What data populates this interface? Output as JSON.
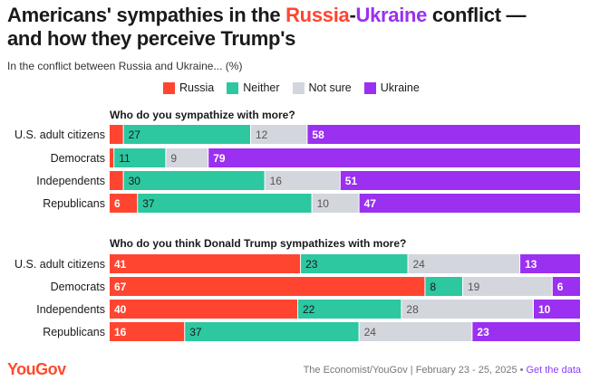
{
  "header": {
    "title_parts": [
      "Americans' sympathies in the ",
      "Russia",
      "-",
      "Ukraine",
      " conflict —",
      "and how they perceive Trump's"
    ],
    "subtitle": "In the conflict between Russia and Ukraine... (%)"
  },
  "legend": [
    "Russia",
    "Neither",
    "Not sure",
    "Ukraine"
  ],
  "footer": {
    "logo": "YouGov",
    "source": "The Economist/YouGov | February 23 - 25, 2025",
    "separator": "•",
    "link": "Get the data"
  },
  "colors": {
    "russia": "#ff4530",
    "neither": "#2dc7a0",
    "not_sure": "#d4d6de",
    "ukraine": "#9b30f0",
    "title_russia": "#ff4530",
    "title_ukraine": "#9b30f0"
  },
  "chart_data": {
    "type": "bar",
    "stacked": true,
    "orientation": "horizontal",
    "series_names": [
      "Russia",
      "Neither",
      "Not sure",
      "Ukraine"
    ],
    "panels": [
      {
        "title": "Who do you sympathize with more?",
        "categories": [
          "U.S. adult citizens",
          "Democrats",
          "Independents",
          "Republicans"
        ],
        "series": [
          {
            "name": "Russia",
            "values": [
              3,
              1,
              3,
              6
            ]
          },
          {
            "name": "Neither",
            "values": [
              27,
              11,
              30,
              37
            ]
          },
          {
            "name": "Not sure",
            "values": [
              12,
              9,
              16,
              10
            ]
          },
          {
            "name": "Ukraine",
            "values": [
              58,
              79,
              51,
              47
            ]
          }
        ],
        "labels": [
          [
            "",
            "27",
            "12",
            "58"
          ],
          [
            "",
            "11",
            "9",
            "79"
          ],
          [
            "",
            "30",
            "16",
            "51"
          ],
          [
            "6",
            "37",
            "10",
            "47"
          ]
        ]
      },
      {
        "title": "Who do you think Donald Trump sympathizes with more?",
        "categories": [
          "U.S. adult citizens",
          "Democrats",
          "Independents",
          "Republicans"
        ],
        "series": [
          {
            "name": "Russia",
            "values": [
              41,
              67,
              40,
              16
            ]
          },
          {
            "name": "Neither",
            "values": [
              23,
              8,
              22,
              37
            ]
          },
          {
            "name": "Not sure",
            "values": [
              24,
              19,
              28,
              24
            ]
          },
          {
            "name": "Ukraine",
            "values": [
              13,
              6,
              10,
              23
            ]
          }
        ],
        "labels": [
          [
            "41",
            "23",
            "24",
            "13"
          ],
          [
            "67",
            "8",
            "19",
            "6"
          ],
          [
            "40",
            "22",
            "28",
            "10"
          ],
          [
            "16",
            "37",
            "24",
            "23"
          ]
        ]
      }
    ]
  }
}
